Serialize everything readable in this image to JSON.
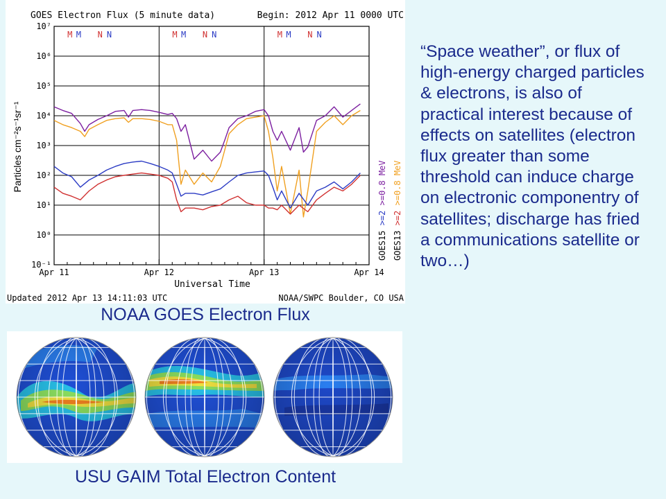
{
  "chart_data": {
    "type": "line",
    "title": "GOES Electron Flux (5 minute data)",
    "begin_label": "Begin: 2012 Apr 11 0000 UTC",
    "ylabel": "Particles cm⁻²s⁻¹sr⁻¹",
    "xlabel": "Universal Time",
    "yscale": "log",
    "ylim": [
      0.1,
      10000000
    ],
    "y_ticks": [
      "10⁷",
      "10⁶",
      "10⁵",
      "10⁴",
      "10³",
      "10²",
      "10¹",
      "10⁰",
      "10⁻¹"
    ],
    "x_ticks": [
      "Apr 11",
      "Apr 12",
      "Apr 13",
      "Apr 14"
    ],
    "xlim": [
      0,
      72
    ],
    "threshold": 1000,
    "grid": true,
    "orbit_markers": [
      {
        "label": "M",
        "x": 3.6,
        "color": "#d03030"
      },
      {
        "label": "M",
        "x": 5.6,
        "color": "#2b3bc4"
      },
      {
        "label": "N",
        "x": 10.5,
        "color": "#d03030"
      },
      {
        "label": "N",
        "x": 12.6,
        "color": "#2b3bc4"
      },
      {
        "label": "M",
        "x": 27.6,
        "color": "#d03030"
      },
      {
        "label": "M",
        "x": 29.6,
        "color": "#2b3bc4"
      },
      {
        "label": "N",
        "x": 34.5,
        "color": "#d03030"
      },
      {
        "label": "N",
        "x": 36.6,
        "color": "#2b3bc4"
      },
      {
        "label": "M",
        "x": 51.6,
        "color": "#d03030"
      },
      {
        "label": "M",
        "x": 53.6,
        "color": "#2b3bc4"
      },
      {
        "label": "N",
        "x": 58.5,
        "color": "#d03030"
      },
      {
        "label": "N",
        "x": 60.6,
        "color": "#2b3bc4"
      }
    ],
    "legend": [
      {
        "label": "GOES15   >=2  >=0.8 MeV",
        "colors": [
          "#2b3bc4",
          "#7c1fa0"
        ]
      },
      {
        "label": "GOES13   >=2  >=0.8 MeV",
        "colors": [
          "#d03030",
          "#f0a020"
        ]
      }
    ],
    "series": [
      {
        "color": "#7c1fa0",
        "x": [
          0,
          2,
          4,
          6,
          7,
          8,
          10,
          12,
          14,
          16,
          17,
          18,
          20,
          22,
          24,
          26,
          27,
          28,
          29,
          30,
          32,
          34,
          36,
          38,
          39,
          40,
          42,
          44,
          46,
          48,
          49,
          50,
          51,
          52,
          54,
          56,
          57,
          58,
          60,
          62,
          64,
          66,
          68,
          70
        ],
        "y": [
          20000,
          15000,
          12000,
          5500,
          3000,
          5000,
          7500,
          10000,
          14000,
          15000,
          9000,
          15000,
          16000,
          15000,
          13000,
          11000,
          12000,
          8000,
          3000,
          5000,
          350,
          700,
          300,
          600,
          1500,
          4000,
          8000,
          10000,
          14000,
          16000,
          10000,
          3000,
          1500,
          3000,
          700,
          4000,
          600,
          900,
          7000,
          10000,
          20000,
          9000,
          15000,
          25000
        ]
      },
      {
        "color": "#f0a020",
        "x": [
          0,
          2,
          4,
          6,
          7,
          8,
          10,
          12,
          14,
          16,
          17,
          18,
          20,
          22,
          24,
          26,
          27,
          28,
          29,
          30,
          32,
          34,
          36,
          38,
          39,
          40,
          42,
          44,
          46,
          48,
          49,
          50,
          51,
          52,
          54,
          56,
          57,
          58,
          60,
          62,
          64,
          66,
          68,
          70
        ],
        "y": [
          7000,
          5000,
          4000,
          3000,
          2000,
          3500,
          5000,
          7000,
          8000,
          8500,
          6000,
          8000,
          8000,
          7500,
          6500,
          5000,
          5000,
          1500,
          50,
          150,
          50,
          120,
          60,
          200,
          700,
          2500,
          5000,
          8000,
          9000,
          10000,
          3000,
          400,
          30,
          200,
          5,
          150,
          4,
          30,
          3000,
          6000,
          10000,
          5000,
          10000,
          15000
        ]
      },
      {
        "color": "#2b3bc4",
        "x": [
          0,
          2,
          4,
          6,
          8,
          10,
          12,
          14,
          16,
          18,
          20,
          22,
          24,
          26,
          27,
          28,
          29,
          30,
          32,
          34,
          36,
          38,
          40,
          42,
          44,
          46,
          48,
          49,
          50,
          51,
          52,
          54,
          56,
          58,
          60,
          62,
          64,
          66,
          68,
          70
        ],
        "y": [
          200,
          120,
          90,
          40,
          70,
          100,
          150,
          200,
          250,
          280,
          300,
          250,
          200,
          150,
          120,
          50,
          20,
          25,
          25,
          22,
          28,
          35,
          60,
          100,
          120,
          130,
          140,
          100,
          40,
          15,
          30,
          8,
          25,
          10,
          30,
          40,
          60,
          35,
          60,
          120
        ]
      },
      {
        "color": "#d03030",
        "x": [
          0,
          2,
          4,
          6,
          8,
          10,
          12,
          14,
          16,
          18,
          20,
          22,
          24,
          26,
          27,
          28,
          29,
          30,
          32,
          34,
          36,
          38,
          40,
          42,
          44,
          46,
          48,
          49,
          50,
          51,
          52,
          54,
          56,
          58,
          60,
          62,
          64,
          66,
          68,
          70
        ],
        "y": [
          40,
          25,
          20,
          15,
          30,
          50,
          70,
          90,
          100,
          110,
          120,
          110,
          100,
          80,
          60,
          15,
          6,
          8,
          8,
          7,
          9,
          10,
          15,
          20,
          12,
          10,
          10,
          8,
          8,
          7,
          10,
          5,
          10,
          6,
          15,
          25,
          40,
          30,
          50,
          100
        ]
      }
    ]
  },
  "footer": {
    "updated": "Updated 2012 Apr 13 14:11:03 UTC",
    "source": "NOAA/SWPC Boulder, CO USA"
  },
  "captions": {
    "goes": "NOAA GOES Electron Flux",
    "gaim": "USU GAIM Total Electron Content"
  },
  "side_text": "“Space weather”, or flux of high-energy charged particles & electrons, is also of practical interest because of effects on satellites (electron flux greater than some threshold can induce charge on electronic componentry of satellites; discharge has fried a communications satellite or two…)"
}
